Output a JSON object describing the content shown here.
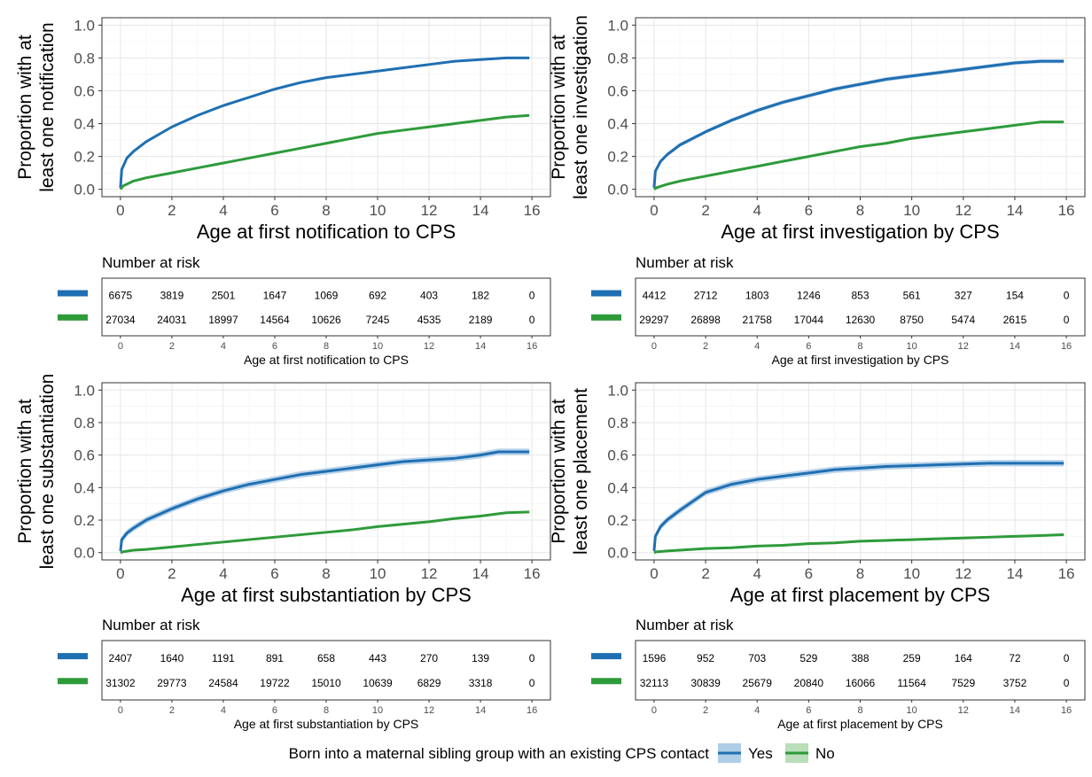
{
  "colors": {
    "yes": "#1f6fb2",
    "yes_ribbon": "#aecde6",
    "no": "#2e9b3a",
    "no_ribbon": "#b9deb9"
  },
  "legend": {
    "title": "Born into a maternal sibling group with an existing CPS contact",
    "yes_label": "Yes",
    "no_label": "No"
  },
  "risk_title": "Number at risk",
  "chart_data": [
    {
      "type": "line",
      "ylabel": [
        "Proportion with at",
        "least one notification"
      ],
      "xlabel": "Age at first notification to CPS",
      "xlim": [
        0,
        16
      ],
      "ylim": [
        0,
        1
      ],
      "x_ticks": [
        0,
        2,
        4,
        6,
        8,
        10,
        12,
        14,
        16
      ],
      "y_ticks": [
        0.0,
        0.2,
        0.4,
        0.6,
        0.8,
        1.0
      ],
      "grid": true,
      "series": [
        {
          "name": "Yes",
          "ribbon": 0.006,
          "points": [
            [
              0,
              0.01
            ],
            [
              0.05,
              0.12
            ],
            [
              0.25,
              0.19
            ],
            [
              0.5,
              0.23
            ],
            [
              1,
              0.29
            ],
            [
              2,
              0.38
            ],
            [
              3,
              0.45
            ],
            [
              4,
              0.51
            ],
            [
              5,
              0.56
            ],
            [
              6,
              0.61
            ],
            [
              7,
              0.65
            ],
            [
              8,
              0.68
            ],
            [
              9,
              0.7
            ],
            [
              10,
              0.72
            ],
            [
              11,
              0.74
            ],
            [
              12,
              0.76
            ],
            [
              13,
              0.78
            ],
            [
              14,
              0.79
            ],
            [
              15,
              0.8
            ],
            [
              15.9,
              0.8
            ]
          ]
        },
        {
          "name": "No",
          "ribbon": 0.003,
          "points": [
            [
              0,
              0.0
            ],
            [
              0.1,
              0.02
            ],
            [
              0.5,
              0.05
            ],
            [
              1,
              0.07
            ],
            [
              2,
              0.1
            ],
            [
              3,
              0.13
            ],
            [
              4,
              0.16
            ],
            [
              5,
              0.19
            ],
            [
              6,
              0.22
            ],
            [
              7,
              0.25
            ],
            [
              8,
              0.28
            ],
            [
              9,
              0.31
            ],
            [
              10,
              0.34
            ],
            [
              11,
              0.36
            ],
            [
              12,
              0.38
            ],
            [
              13,
              0.4
            ],
            [
              14,
              0.42
            ],
            [
              15,
              0.44
            ],
            [
              15.9,
              0.45
            ]
          ]
        }
      ],
      "risk": {
        "xlabel": "Age at first notification to CPS",
        "yes": [
          "6675",
          "3819",
          "2501",
          "1647",
          "1069",
          "692",
          "403",
          "182",
          "0"
        ],
        "no": [
          "27034",
          "24031",
          "18997",
          "14564",
          "10626",
          "7245",
          "4535",
          "2189",
          "0"
        ]
      }
    },
    {
      "type": "line",
      "ylabel": [
        "Proportion with at",
        "least one investigation"
      ],
      "xlabel": "Age at first investigation by CPS",
      "xlim": [
        0,
        16
      ],
      "ylim": [
        0,
        1
      ],
      "x_ticks": [
        0,
        2,
        4,
        6,
        8,
        10,
        12,
        14,
        16
      ],
      "y_ticks": [
        0.0,
        0.2,
        0.4,
        0.6,
        0.8,
        1.0
      ],
      "grid": true,
      "series": [
        {
          "name": "Yes",
          "ribbon": 0.012,
          "points": [
            [
              0,
              0.01
            ],
            [
              0.05,
              0.11
            ],
            [
              0.25,
              0.17
            ],
            [
              0.5,
              0.21
            ],
            [
              1,
              0.27
            ],
            [
              2,
              0.35
            ],
            [
              3,
              0.42
            ],
            [
              4,
              0.48
            ],
            [
              5,
              0.53
            ],
            [
              6,
              0.57
            ],
            [
              7,
              0.61
            ],
            [
              8,
              0.64
            ],
            [
              9,
              0.67
            ],
            [
              10,
              0.69
            ],
            [
              11,
              0.71
            ],
            [
              12,
              0.73
            ],
            [
              13,
              0.75
            ],
            [
              14,
              0.77
            ],
            [
              15,
              0.78
            ],
            [
              15.9,
              0.78
            ]
          ]
        },
        {
          "name": "No",
          "ribbon": 0.003,
          "points": [
            [
              0,
              0.0
            ],
            [
              0.1,
              0.01
            ],
            [
              0.5,
              0.03
            ],
            [
              1,
              0.05
            ],
            [
              2,
              0.08
            ],
            [
              3,
              0.11
            ],
            [
              4,
              0.14
            ],
            [
              5,
              0.17
            ],
            [
              6,
              0.2
            ],
            [
              7,
              0.23
            ],
            [
              8,
              0.26
            ],
            [
              9,
              0.28
            ],
            [
              10,
              0.31
            ],
            [
              11,
              0.33
            ],
            [
              12,
              0.35
            ],
            [
              13,
              0.37
            ],
            [
              14,
              0.39
            ],
            [
              15,
              0.41
            ],
            [
              15.9,
              0.41
            ]
          ]
        }
      ],
      "risk": {
        "xlabel": "Age at first investigation by CPS",
        "yes": [
          "4412",
          "2712",
          "1803",
          "1246",
          "853",
          "561",
          "327",
          "154",
          "0"
        ],
        "no": [
          "29297",
          "26898",
          "21758",
          "17044",
          "12630",
          "8750",
          "5474",
          "2615",
          "0"
        ]
      }
    },
    {
      "type": "line",
      "ylabel": [
        "Proportion with at",
        "least one substantiation"
      ],
      "xlabel": "Age at first substantiation by CPS",
      "xlim": [
        0,
        16
      ],
      "ylim": [
        0,
        1
      ],
      "x_ticks": [
        0,
        2,
        4,
        6,
        8,
        10,
        12,
        14,
        16
      ],
      "y_ticks": [
        0.0,
        0.2,
        0.4,
        0.6,
        0.8,
        1.0
      ],
      "grid": true,
      "series": [
        {
          "name": "Yes",
          "ribbon": 0.02,
          "points": [
            [
              0,
              0.01
            ],
            [
              0.05,
              0.08
            ],
            [
              0.25,
              0.12
            ],
            [
              0.5,
              0.15
            ],
            [
              1,
              0.2
            ],
            [
              2,
              0.27
            ],
            [
              3,
              0.33
            ],
            [
              4,
              0.38
            ],
            [
              5,
              0.42
            ],
            [
              6,
              0.45
            ],
            [
              7,
              0.48
            ],
            [
              8,
              0.5
            ],
            [
              9,
              0.52
            ],
            [
              10,
              0.54
            ],
            [
              11,
              0.56
            ],
            [
              12,
              0.57
            ],
            [
              13,
              0.58
            ],
            [
              14,
              0.6
            ],
            [
              14.7,
              0.62
            ],
            [
              15.9,
              0.62
            ]
          ]
        },
        {
          "name": "No",
          "ribbon": 0.003,
          "points": [
            [
              0,
              0.0
            ],
            [
              0.1,
              0.005
            ],
            [
              0.5,
              0.015
            ],
            [
              1,
              0.02
            ],
            [
              2,
              0.035
            ],
            [
              3,
              0.05
            ],
            [
              4,
              0.065
            ],
            [
              5,
              0.08
            ],
            [
              6,
              0.095
            ],
            [
              7,
              0.11
            ],
            [
              8,
              0.125
            ],
            [
              9,
              0.14
            ],
            [
              10,
              0.16
            ],
            [
              11,
              0.175
            ],
            [
              12,
              0.19
            ],
            [
              13,
              0.21
            ],
            [
              14,
              0.225
            ],
            [
              15,
              0.245
            ],
            [
              15.9,
              0.25
            ]
          ]
        }
      ],
      "risk": {
        "xlabel": "Age at first substantiation by CPS",
        "yes": [
          "2407",
          "1640",
          "1191",
          "891",
          "658",
          "443",
          "270",
          "139",
          "0"
        ],
        "no": [
          "31302",
          "29773",
          "24584",
          "19722",
          "15010",
          "10639",
          "6829",
          "3318",
          "0"
        ]
      }
    },
    {
      "type": "line",
      "ylabel": [
        "Proportion with at",
        "least one placement"
      ],
      "xlabel": "Age at first placement by CPS",
      "xlim": [
        0,
        16
      ],
      "ylim": [
        0,
        1
      ],
      "x_ticks": [
        0,
        2,
        4,
        6,
        8,
        10,
        12,
        14,
        16
      ],
      "y_ticks": [
        0.0,
        0.2,
        0.4,
        0.6,
        0.8,
        1.0
      ],
      "grid": true,
      "series": [
        {
          "name": "Yes",
          "ribbon": 0.02,
          "points": [
            [
              0,
              0.01
            ],
            [
              0.05,
              0.1
            ],
            [
              0.25,
              0.16
            ],
            [
              0.5,
              0.2
            ],
            [
              1,
              0.26
            ],
            [
              2,
              0.37
            ],
            [
              3,
              0.42
            ],
            [
              4,
              0.45
            ],
            [
              5,
              0.47
            ],
            [
              6,
              0.49
            ],
            [
              7,
              0.51
            ],
            [
              8,
              0.52
            ],
            [
              9,
              0.53
            ],
            [
              10,
              0.535
            ],
            [
              11,
              0.54
            ],
            [
              12,
              0.545
            ],
            [
              13,
              0.55
            ],
            [
              14,
              0.55
            ],
            [
              15,
              0.55
            ],
            [
              15.9,
              0.55
            ]
          ]
        },
        {
          "name": "No",
          "ribbon": 0.003,
          "points": [
            [
              0,
              0.0
            ],
            [
              0.1,
              0.005
            ],
            [
              0.5,
              0.01
            ],
            [
              1,
              0.015
            ],
            [
              2,
              0.025
            ],
            [
              3,
              0.03
            ],
            [
              4,
              0.04
            ],
            [
              5,
              0.045
            ],
            [
              6,
              0.055
            ],
            [
              7,
              0.06
            ],
            [
              8,
              0.07
            ],
            [
              9,
              0.075
            ],
            [
              10,
              0.08
            ],
            [
              11,
              0.085
            ],
            [
              12,
              0.09
            ],
            [
              13,
              0.095
            ],
            [
              14,
              0.1
            ],
            [
              15,
              0.105
            ],
            [
              15.9,
              0.11
            ]
          ]
        }
      ],
      "risk": {
        "xlabel": "Age at first placement by CPS",
        "yes": [
          "1596",
          "952",
          "703",
          "529",
          "388",
          "259",
          "164",
          "72",
          "0"
        ],
        "no": [
          "32113",
          "30839",
          "25679",
          "20840",
          "16066",
          "11564",
          "7529",
          "3752",
          "0"
        ]
      }
    }
  ]
}
